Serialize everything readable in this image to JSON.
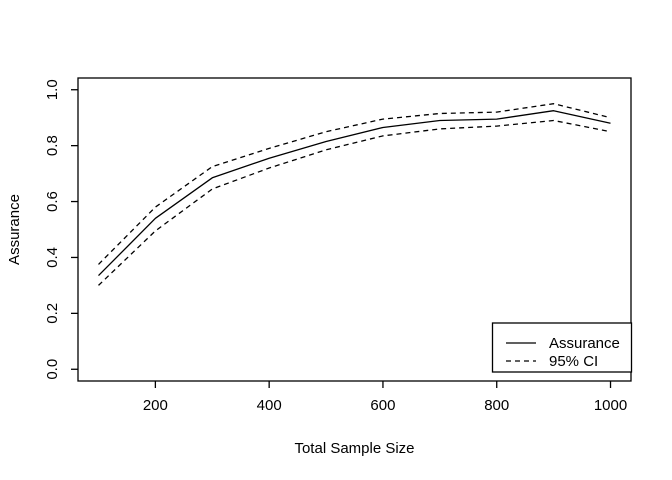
{
  "chart_data": {
    "type": "line",
    "title": "",
    "xlabel": "Total Sample Size",
    "ylabel": "Assurance",
    "x": [
      100,
      200,
      300,
      400,
      500,
      600,
      700,
      800,
      900,
      1000
    ],
    "series": [
      {
        "name": "Assurance",
        "style": "solid",
        "values": [
          0.335,
          0.54,
          0.685,
          0.755,
          0.815,
          0.865,
          0.89,
          0.895,
          0.925,
          0.88
        ]
      },
      {
        "name": "95% CI upper",
        "style": "dashed",
        "values": [
          0.375,
          0.58,
          0.725,
          0.79,
          0.85,
          0.895,
          0.915,
          0.92,
          0.95,
          0.9
        ]
      },
      {
        "name": "95% CI lower",
        "style": "dashed",
        "values": [
          0.3,
          0.495,
          0.645,
          0.72,
          0.785,
          0.835,
          0.86,
          0.87,
          0.89,
          0.85
        ]
      }
    ],
    "xticks": [
      200,
      400,
      600,
      800,
      1000
    ],
    "yticks": [
      0.0,
      0.2,
      0.4,
      0.6,
      0.8,
      1.0
    ],
    "xlim": [
      64,
      1036
    ],
    "ylim": [
      -0.042,
      1.042
    ],
    "grid": false,
    "line_color": "#000000",
    "background_color": "#ffffff",
    "legend": {
      "position": "bottomright",
      "entries": [
        {
          "label": "Assurance",
          "style": "solid"
        },
        {
          "label": "95% CI",
          "style": "dashed"
        }
      ]
    }
  }
}
